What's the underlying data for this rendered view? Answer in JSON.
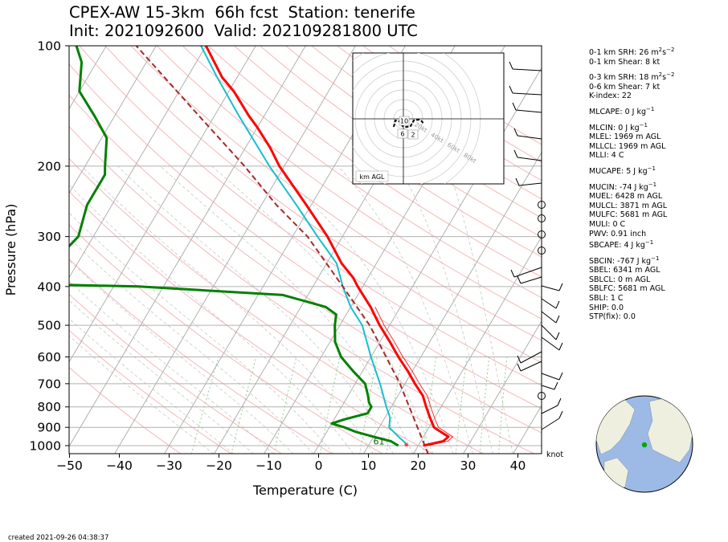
{
  "title": {
    "line1": "CPEX-AW 15-3km  66h fcst  Station: tenerife",
    "line2": "Init: 2021092600  Valid: 202109281800 UTC"
  },
  "chart_data": {
    "type": "line",
    "subtype": "skew-T log-p sounding",
    "xlabel": "Temperature (C)",
    "ylabel": "Pressure (hPa)",
    "x_ticks": [
      -50,
      -40,
      -30,
      -20,
      -10,
      0,
      10,
      20,
      30,
      40
    ],
    "y_ticks": [
      100,
      200,
      300,
      400,
      500,
      600,
      700,
      800,
      900,
      1000
    ],
    "xlim": [
      -50,
      45
    ],
    "ylim": [
      1050,
      100
    ],
    "y_scale": "log",
    "grid": true,
    "series": [
      {
        "name": "temperature",
        "color": "#ff0000",
        "points": [
          [
            1000,
            21
          ],
          [
            975,
            24.5
          ],
          [
            950,
            25
          ],
          [
            925,
            23
          ],
          [
            900,
            21
          ],
          [
            850,
            19
          ],
          [
            800,
            17
          ],
          [
            750,
            15
          ],
          [
            700,
            12
          ],
          [
            650,
            9
          ],
          [
            600,
            5.5
          ],
          [
            550,
            2
          ],
          [
            500,
            -2
          ],
          [
            450,
            -6
          ],
          [
            400,
            -11
          ],
          [
            380,
            -13
          ],
          [
            350,
            -17
          ],
          [
            300,
            -23
          ],
          [
            250,
            -31
          ],
          [
            200,
            -41
          ],
          [
            180,
            -45
          ],
          [
            160,
            -50
          ],
          [
            150,
            -53
          ],
          [
            130,
            -59
          ],
          [
            120,
            -63
          ],
          [
            100,
            -70
          ]
        ]
      },
      {
        "name": "dewpoint",
        "color": "#008000",
        "points": [
          [
            1000,
            16
          ],
          [
            975,
            14
          ],
          [
            950,
            10
          ],
          [
            925,
            6
          ],
          [
            900,
            3
          ],
          [
            880,
            0
          ],
          [
            860,
            2
          ],
          [
            830,
            6
          ],
          [
            800,
            6
          ],
          [
            780,
            5
          ],
          [
            750,
            4
          ],
          [
            700,
            2
          ],
          [
            650,
            -2
          ],
          [
            600,
            -6
          ],
          [
            550,
            -9
          ],
          [
            500,
            -11
          ],
          [
            470,
            -12
          ],
          [
            450,
            -15
          ],
          [
            420,
            -25
          ],
          [
            400,
            -55
          ],
          [
            395,
            -75
          ],
          [
            370,
            -80
          ],
          [
            350,
            -75
          ],
          [
            300,
            -73
          ],
          [
            250,
            -75
          ],
          [
            210,
            -75
          ],
          [
            200,
            -76
          ],
          [
            170,
            -79
          ],
          [
            150,
            -84
          ],
          [
            130,
            -90
          ],
          [
            110,
            -93
          ],
          [
            100,
            -96
          ]
        ]
      },
      {
        "name": "wet-bulb",
        "color": "#17becf",
        "points": [
          [
            1000,
            18
          ],
          [
            950,
            15
          ],
          [
            900,
            12
          ],
          [
            850,
            11
          ],
          [
            800,
            9
          ],
          [
            700,
            5
          ],
          [
            600,
            0
          ],
          [
            500,
            -5.5
          ],
          [
            450,
            -10
          ],
          [
            400,
            -14
          ],
          [
            350,
            -18
          ],
          [
            300,
            -25
          ],
          [
            250,
            -33
          ],
          [
            200,
            -43
          ],
          [
            150,
            -55
          ],
          [
            120,
            -64
          ],
          [
            100,
            -71
          ]
        ]
      },
      {
        "name": "parcel",
        "color": "#a52a2a",
        "points": [
          [
            1050,
            23
          ],
          [
            700,
            9
          ],
          [
            500,
            -4
          ],
          [
            400,
            -14
          ],
          [
            300,
            -27
          ],
          [
            250,
            -37
          ],
          [
            200,
            -48
          ],
          [
            150,
            -63
          ],
          [
            100,
            -84
          ]
        ]
      }
    ],
    "annotations": [
      {
        "text": "61",
        "color": "#006400",
        "p": 995,
        "t": 12
      }
    ],
    "wind_units": "knot",
    "hodograph": {
      "ring_labels": [
        "20kt",
        "40kt",
        "60kt",
        "80kt"
      ],
      "height_labels": [
        "10",
        "6",
        "2"
      ],
      "legend": "km AGL"
    }
  },
  "params": [
    {
      "lead": "0-1 km SRH: 26 m",
      "sup1": "2",
      "mid": "s",
      "sup2": "−2"
    },
    {
      "text": "0-1 km Shear: 8 kt"
    },
    {
      "lead": "0-3 km SRH: 18 m",
      "sup1": "2",
      "mid": "s",
      "sup2": "−2",
      "gap": true
    },
    {
      "text": "0-6 km Shear: 7 kt"
    },
    {
      "text": "K-index: 22"
    },
    {
      "lead": "MLCAPE: 0 J kg",
      "sup1": "−1",
      "gap": true
    },
    {
      "lead": "MLCIN: 0 J kg",
      "sup1": "−1",
      "gap": true
    },
    {
      "text": "MLEL: 1969 m AGL"
    },
    {
      "text": "MLLCL: 1969 m AGL"
    },
    {
      "text": "MLLI: 4 C"
    },
    {
      "lead": "MUCAPE: 5 J kg",
      "sup1": "−1",
      "gap": true
    },
    {
      "lead": "MUCIN: -74 J kg",
      "sup1": "−1",
      "gap": true
    },
    {
      "text": "MUEL: 6428 m AGL"
    },
    {
      "text": "MULCL: 3871 m AGL"
    },
    {
      "text": "MULFC: 5681 m AGL"
    },
    {
      "text": "MULI: 0 C"
    },
    {
      "text": "PWV: 0.91 inch"
    },
    {
      "lead": "SBCAPE: 4 J kg",
      "sup1": "−1"
    },
    {
      "lead": "SBCIN: -767 J kg",
      "sup1": "−1",
      "gap": true
    },
    {
      "text": "SBEL: 6341 m AGL"
    },
    {
      "text": "SBLCL: 0 m AGL"
    },
    {
      "text": "SBLFC: 5681 m AGL"
    },
    {
      "text": "SBLI: 1 C"
    },
    {
      "text": "SHIP: 0.0"
    },
    {
      "text": "STP(fix): 0.0"
    }
  ],
  "created": "created 2021-09-26 04:38:37",
  "colors": {
    "temperature": "#ff0000",
    "dewpoint": "#008000",
    "wetbulb": "#17becf",
    "parcel": "#a52a2a",
    "isotherm": "#b0b0b0",
    "dry_adiabat": "#f4b8b8",
    "moist_adiabat": "#c8c8c8",
    "mixing_ratio": "#8fcf8f",
    "ocean": "#9db9e6",
    "land": "#efefdf",
    "station": "#00aa00"
  }
}
